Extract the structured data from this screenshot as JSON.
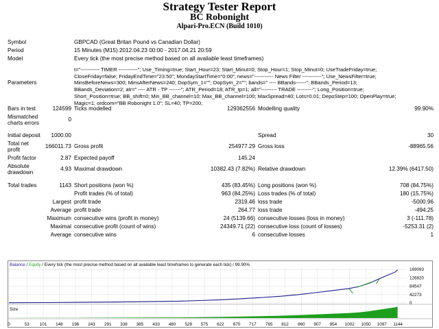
{
  "header": {
    "title": "Strategy Tester Report",
    "subtitle": "BC Robonight",
    "broker": "Alpari-Pro.ECN (Build 1010)"
  },
  "info": {
    "symbol_label": "Symbol",
    "symbol_value": "GBPCAD (Great Britan Pound vs Canadian Dollar)",
    "period_label": "Period",
    "period_value": "15 Minutes (M15) 2012.04.23 00:00 - 2017.04.21 20:59",
    "model_label": "Model",
    "model_value": "Every tick (the most precise method based on all available least timeframes)",
    "parameters_label": "Parameters",
    "parameters_lines": [
      "t=\"----------- TIMER -----------\"; Use_Timing=true; Start_Hour=23; Start_Minut=0; Stop_Hour=1; Stop_Minut=0; UseTradeFriday=true;",
      "CloseFriday=false; FridayEndTime=\"23:50\"; MondayStartTime=\"0:00\"; news=\"----------- News Filter -----------\"; Use_NewsFilter=true;",
      "MinsBeforeNews=300; MinsAfterNews=240; DopSym_1=\"\"; DopSym_2=\"\"; bands=\" ---- BBands------\"; BBands_Period=13;",
      "BBands_Deviation=2; atr=\" ---- ATR - TP -------\"; ATR_Period=18; ATR_tp=1; all=\"--------- TRADE ---------\"; Long_Position=true;",
      "Short_Position=true; BB_shift=0; Min_BB_channel=10; Max_BB_channel=100; MaxSpread=40; Lots=0.01; DepoStep=100; OpenPlay=true;",
      "Magic=1; ordcom=\"BB Robonight 1.0\"; SL=40; TP=200;"
    ]
  },
  "stats": {
    "bars_label": "Bars in test",
    "bars_value": "124599",
    "ticks_label": "Ticks modelled",
    "ticks_value": "129362556",
    "quality_label": "Modelling quality",
    "quality_value": "99.90%",
    "mismatch_label_1": "Mismatched",
    "mismatch_label_2": "charts errors",
    "mismatch_value": "0",
    "deposit_label": "Initial deposit",
    "deposit_value": "1000.00",
    "spread_label": "Spread",
    "spread_value": "30",
    "netprofit_label_1": "Total net",
    "netprofit_label_2": "profit",
    "netprofit_value": "166011.73",
    "grossprofit_label": "Gross profit",
    "grossprofit_value": "254977.29",
    "grossloss_label": "Gross loss",
    "grossloss_value": "-88965.56",
    "pf_label": "Profit factor",
    "pf_value": "2.87",
    "ep_label": "Expected payoff",
    "ep_value": "145.24",
    "absdd_label_1": "Absolute",
    "absdd_label_2": "drawdown",
    "absdd_value": "4.93",
    "maxdd_label": "Maximal drawdown",
    "maxdd_value": "10382.43 (7.82%)",
    "reldd_label": "Relative drawdown",
    "reldd_value": "12.39% (6417.50)",
    "trades_label": "Total trades",
    "trades_value": "1143",
    "short_label": "Short positions (won %)",
    "short_value": "435 (83.45%)",
    "long_label": "Long positions (won %)",
    "long_value": "708 (84.75%)",
    "pt_label": "Profit trades (% of total)",
    "pt_value": "963 (84.25%)",
    "lt_label": "Loss trades (% of total)",
    "lt_value": "180 (15.75%)",
    "largest_label": "Largest",
    "largest_profit_label": "profit trade",
    "largest_profit_value": "2319.46",
    "largest_loss_label": "loss trade",
    "largest_loss_value": "-5000.96",
    "average_label": "Average",
    "average_profit_label": "profit trade",
    "average_profit_value": "264.77",
    "average_loss_label": "loss trade",
    "average_loss_value": "-494.25",
    "maximum_label": "Maximum",
    "max_cw_label": "consecutive wins (profit in money)",
    "max_cw_value": "24 (5139.66)",
    "max_cl_label": "consecutive losses (loss in money)",
    "max_cl_value": "3 (-111.78)",
    "maximal_label": "Maximal",
    "mal_cp_label": "consecutive profit (count of wins)",
    "mal_cp_value": "24349.71 (22)",
    "mal_cl_label": "consecutive loss (count of losses)",
    "mal_cl_value": "-5253.31 (2)",
    "avg2_label": "Average",
    "avg_cw_label": "consecutive wins",
    "avg_cw_value": "6",
    "avg_cl_label": "consecutive losses",
    "avg_cl_value": "1"
  },
  "chart_data": {
    "type": "line",
    "legend_balance": "Balance",
    "legend_sep": " / ",
    "legend_equity": "Equity",
    "legend_rest": " / Every tick (the most precise method based on all available least timeframes to generate each tick) / 99.90%",
    "size_label": "Size",
    "y_ticks": [
      169093,
      126820,
      84547,
      42273,
      0
    ],
    "x_ticks": [
      0,
      53,
      101,
      148,
      196,
      243,
      291,
      338,
      385,
      433,
      480,
      528,
      575,
      622,
      670,
      717,
      765,
      812,
      860,
      907,
      954,
      1002,
      1050,
      1097,
      1144
    ],
    "xlim": [
      0,
      1170
    ],
    "ylim": [
      0,
      180000
    ],
    "balance": [
      [
        0,
        1000
      ],
      [
        100,
        1800
      ],
      [
        200,
        3000
      ],
      [
        300,
        4500
      ],
      [
        400,
        6500
      ],
      [
        500,
        9000
      ],
      [
        560,
        12000
      ],
      [
        620,
        16000
      ],
      [
        680,
        21000
      ],
      [
        740,
        27000
      ],
      [
        800,
        34000
      ],
      [
        850,
        42000
      ],
      [
        900,
        52000
      ],
      [
        950,
        62000
      ],
      [
        1000,
        73000
      ],
      [
        1030,
        83000
      ],
      [
        1060,
        100000
      ],
      [
        1080,
        115000
      ],
      [
        1100,
        130000
      ],
      [
        1120,
        145000
      ],
      [
        1135,
        155000
      ],
      [
        1143,
        167000
      ]
    ],
    "equity_dips": [
      [
        1000,
        72000
      ],
      [
        1012,
        48000
      ],
      [
        1025,
        80000
      ],
      [
        1070,
        108000
      ],
      [
        1080,
        98000
      ],
      [
        1090,
        122000
      ]
    ],
    "colors": {
      "balance": "#1a1a8c",
      "equity": "#1e9e1e",
      "size": "#1e9e1e",
      "grid": "#d8d8d8"
    }
  }
}
